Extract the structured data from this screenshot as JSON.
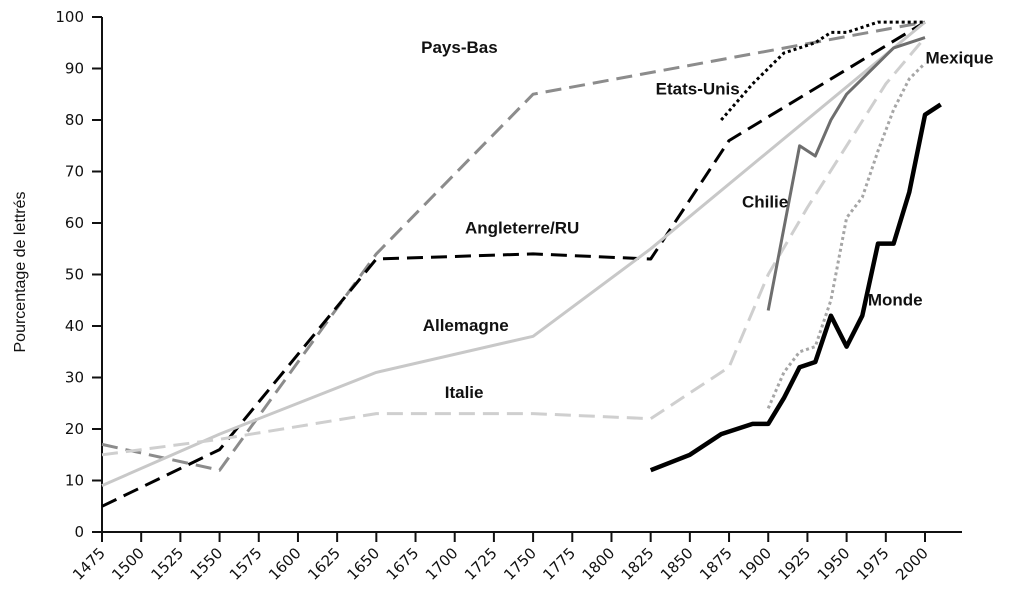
{
  "chart_data": {
    "type": "line",
    "title": "",
    "xlabel": "",
    "ylabel": "Pourcentage de lettrés",
    "xlim": [
      1475,
      2015
    ],
    "ylim": [
      0,
      100
    ],
    "x_ticks": [
      1475,
      1500,
      1525,
      1550,
      1575,
      1600,
      1625,
      1650,
      1675,
      1700,
      1725,
      1750,
      1775,
      1800,
      1825,
      1850,
      1875,
      1900,
      1925,
      1950,
      1975,
      2000
    ],
    "y_ticks": [
      0,
      10,
      20,
      30,
      40,
      50,
      60,
      70,
      80,
      90,
      100
    ],
    "grid": false,
    "legend": "none (inline labels)",
    "series": [
      {
        "name": "Pays-Bas",
        "color": "#8c8c8c",
        "style": "dashed",
        "width": 3,
        "points": [
          [
            1475,
            17
          ],
          [
            1550,
            12
          ],
          [
            1650,
            54
          ],
          [
            1750,
            85
          ],
          [
            2000,
            99
          ]
        ]
      },
      {
        "name": "Angleterre/RU",
        "color": "#000000",
        "style": "dashed",
        "width": 3,
        "points": [
          [
            1475,
            5
          ],
          [
            1550,
            16
          ],
          [
            1650,
            53
          ],
          [
            1750,
            54
          ],
          [
            1825,
            53
          ],
          [
            1875,
            76
          ],
          [
            2000,
            99
          ]
        ]
      },
      {
        "name": "Allemagne",
        "color": "#c8c8c8",
        "style": "solid",
        "width": 3,
        "points": [
          [
            1475,
            9
          ],
          [
            1550,
            19
          ],
          [
            1650,
            31
          ],
          [
            1750,
            38
          ],
          [
            1825,
            55
          ],
          [
            2000,
            99
          ]
        ]
      },
      {
        "name": "Italie",
        "color": "#cfcfcf",
        "style": "dashed",
        "width": 3,
        "points": [
          [
            1475,
            15
          ],
          [
            1550,
            18
          ],
          [
            1650,
            23
          ],
          [
            1750,
            23
          ],
          [
            1825,
            22
          ],
          [
            1875,
            32
          ],
          [
            1900,
            50
          ],
          [
            1925,
            63
          ],
          [
            1950,
            75
          ],
          [
            1975,
            87
          ],
          [
            2000,
            96
          ]
        ]
      },
      {
        "name": "Etats-Unis",
        "color": "#000000",
        "style": "dotted",
        "width": 3,
        "points": [
          [
            1870,
            80
          ],
          [
            1890,
            87
          ],
          [
            1910,
            93
          ],
          [
            1930,
            95
          ],
          [
            1940,
            97
          ],
          [
            1950,
            97
          ],
          [
            1960,
            98
          ],
          [
            1970,
            99
          ],
          [
            1980,
            99
          ],
          [
            2000,
            99
          ]
        ]
      },
      {
        "name": "Chilie",
        "color": "#6e6e6e",
        "style": "solid",
        "width": 3,
        "points": [
          [
            1900,
            43
          ],
          [
            1920,
            75
          ],
          [
            1930,
            73
          ],
          [
            1940,
            80
          ],
          [
            1950,
            85
          ],
          [
            1960,
            88
          ],
          [
            1970,
            91
          ],
          [
            1980,
            94
          ],
          [
            2000,
            96
          ]
        ]
      },
      {
        "name": "Mexique",
        "color": "#a6a6a6",
        "style": "dotted",
        "width": 3,
        "points": [
          [
            1900,
            24
          ],
          [
            1910,
            31
          ],
          [
            1920,
            35
          ],
          [
            1930,
            36
          ],
          [
            1940,
            45
          ],
          [
            1950,
            61
          ],
          [
            1960,
            65
          ],
          [
            1970,
            74
          ],
          [
            1980,
            82
          ],
          [
            1990,
            88
          ],
          [
            2000,
            91
          ]
        ]
      },
      {
        "name": "Monde",
        "color": "#000000",
        "style": "solid",
        "width": 4.5,
        "points": [
          [
            1825,
            12
          ],
          [
            1850,
            15
          ],
          [
            1870,
            19
          ],
          [
            1880,
            20
          ],
          [
            1890,
            21
          ],
          [
            1900,
            21
          ],
          [
            1910,
            26
          ],
          [
            1920,
            32
          ],
          [
            1930,
            33
          ],
          [
            1940,
            42
          ],
          [
            1950,
            36
          ],
          [
            1960,
            42
          ],
          [
            1970,
            56
          ],
          [
            1980,
            56
          ],
          [
            1990,
            66
          ],
          [
            2000,
            81
          ],
          [
            2010,
            83
          ]
        ]
      }
    ],
    "labels": [
      {
        "text": "Pays-Bas",
        "x": 1703,
        "y": 93
      },
      {
        "text": "Etats-Unis",
        "x": 1855,
        "y": 85
      },
      {
        "text": "Angleterre/RU",
        "x": 1743,
        "y": 58
      },
      {
        "text": "Chilie",
        "x": 1898,
        "y": 63
      },
      {
        "text": "Mexique",
        "x": 2022,
        "y": 91
      },
      {
        "text": "Monde",
        "x": 1981,
        "y": 44
      },
      {
        "text": "Allemagne",
        "x": 1707,
        "y": 39
      },
      {
        "text": "Italie",
        "x": 1706,
        "y": 26
      }
    ]
  }
}
